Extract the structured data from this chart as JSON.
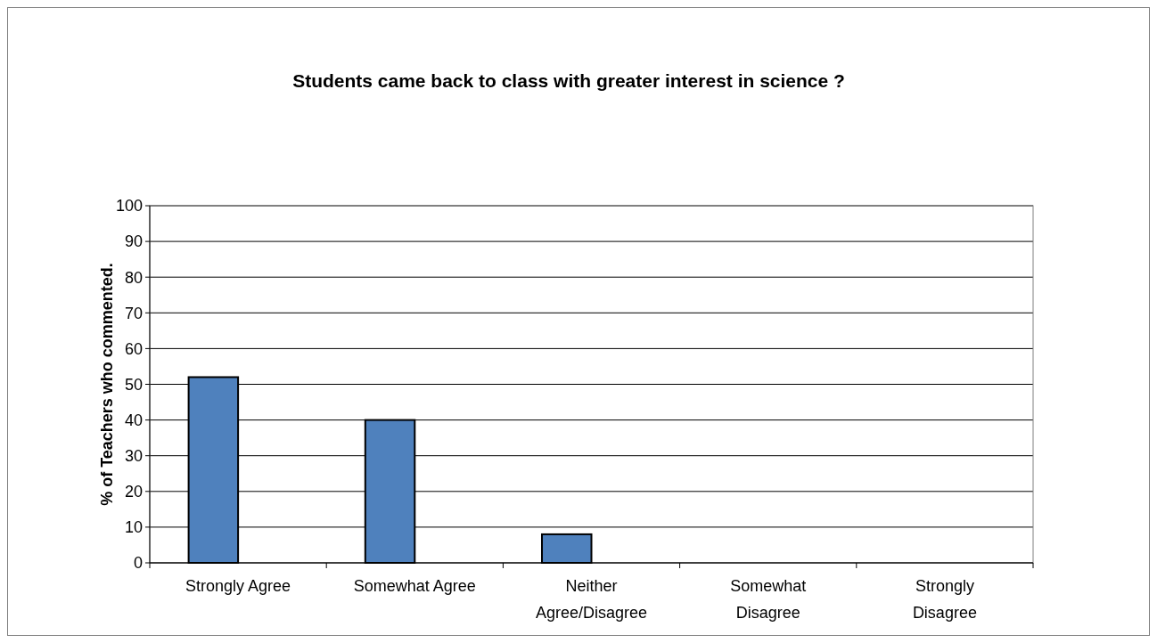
{
  "chart_data": {
    "type": "bar",
    "title": "Students came back to class with greater interest in science ?",
    "ylabel": "% of Teachers who commented.",
    "categories": [
      "Strongly Agree",
      "Somewhat Agree",
      "Neither Agree/Disagree",
      "Somewhat Disagree",
      "Strongly Disagree"
    ],
    "values": [
      52,
      40,
      8,
      0,
      0
    ],
    "color": "#4f81bd",
    "ylim": [
      0,
      100
    ],
    "yticks": [
      0,
      10,
      20,
      30,
      40,
      50,
      60,
      70,
      80,
      90,
      100
    ],
    "grid": "y"
  }
}
